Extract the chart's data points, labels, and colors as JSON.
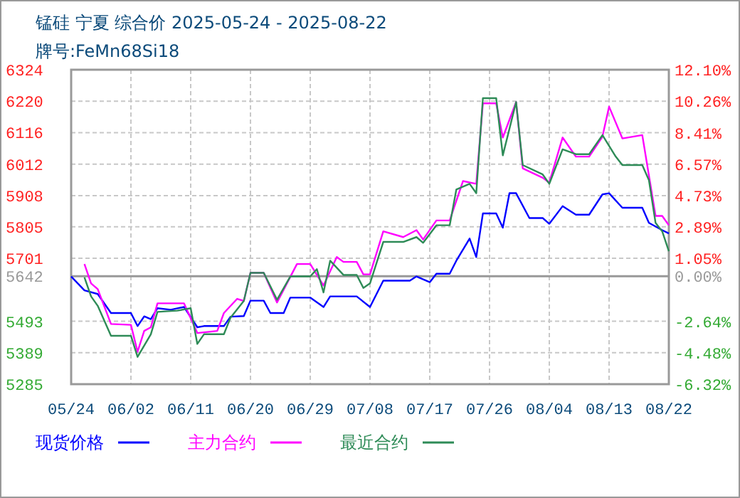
{
  "chart_data": {
    "type": "line",
    "title": "锰硅  宁夏  综合价  2025-05-24 - 2025-08-22",
    "subtitle": "牌号:FeMn68Si18",
    "xlim": [
      "2025-05-24",
      "2025-08-22"
    ],
    "xticks": [
      {
        "value": "2025-05-24",
        "label": "05/24"
      },
      {
        "value": "2025-06-02",
        "label": "06/02"
      },
      {
        "value": "2025-06-11",
        "label": "06/11"
      },
      {
        "value": "2025-06-20",
        "label": "06/20"
      },
      {
        "value": "2025-06-29",
        "label": "06/29"
      },
      {
        "value": "2025-07-08",
        "label": "07/08"
      },
      {
        "value": "2025-07-17",
        "label": "07/17"
      },
      {
        "value": "2025-07-26",
        "label": "07/26"
      },
      {
        "value": "2025-08-04",
        "label": "08/04"
      },
      {
        "value": "2025-08-13",
        "label": "08/13"
      },
      {
        "value": "2025-08-22",
        "label": "08/22"
      }
    ],
    "ylim": [
      5285,
      6324
    ],
    "yticks": [
      5285,
      5389,
      5493,
      5642,
      5701,
      5805,
      5908,
      6012,
      6116,
      6220,
      6324
    ],
    "y2lim": [
      -6.32,
      12.1
    ],
    "y2ticks": [
      {
        "value": -6.32,
        "label": "-6.32%"
      },
      {
        "value": -4.48,
        "label": "-4.48%"
      },
      {
        "value": -2.64,
        "label": "-2.64%"
      },
      {
        "value": 0,
        "label": "0.00%"
      },
      {
        "value": 1.05,
        "label": "1.05%"
      },
      {
        "value": 2.89,
        "label": "2.89%"
      },
      {
        "value": 4.73,
        "label": "4.73%"
      },
      {
        "value": 6.57,
        "label": "6.57%"
      },
      {
        "value": 8.41,
        "label": "8.41%"
      },
      {
        "value": 10.26,
        "label": "10.26%"
      },
      {
        "value": 12.1,
        "label": "12.10%"
      }
    ],
    "ref_lines": [
      {
        "axis": "y",
        "value": 5642,
        "color": "#999999"
      }
    ],
    "grid": true,
    "legend": "bottom",
    "marker": "none",
    "line_style": "solid",
    "series": [
      {
        "name": "现货价格",
        "color": "#0000ff",
        "x": [
          "2025-05-24",
          "2025-05-26",
          "2025-05-28",
          "2025-05-30",
          "2025-06-02",
          "2025-06-03",
          "2025-06-04",
          "2025-06-05",
          "2025-06-06",
          "2025-06-08",
          "2025-06-10",
          "2025-06-12",
          "2025-06-13",
          "2025-06-16",
          "2025-06-17",
          "2025-06-19",
          "2025-06-20",
          "2025-06-22",
          "2025-06-23",
          "2025-06-25",
          "2025-06-26",
          "2025-06-29",
          "2025-07-01",
          "2025-07-02",
          "2025-07-06",
          "2025-07-08",
          "2025-07-10",
          "2025-07-14",
          "2025-07-15",
          "2025-07-17",
          "2025-07-18",
          "2025-07-20",
          "2025-07-21",
          "2025-07-23",
          "2025-07-24",
          "2025-07-25",
          "2025-07-27",
          "2025-07-28",
          "2025-07-29",
          "2025-07-30",
          "2025-08-01",
          "2025-08-03",
          "2025-08-04",
          "2025-08-06",
          "2025-08-08",
          "2025-08-10",
          "2025-08-12",
          "2025-08-13",
          "2025-08-15",
          "2025-08-18",
          "2025-08-19",
          "2025-08-21",
          "2025-08-22"
        ],
        "values": [
          5641,
          5595,
          5583,
          5520,
          5520,
          5477,
          5509,
          5500,
          5536,
          5531,
          5540,
          5473,
          5477,
          5477,
          5508,
          5510,
          5561,
          5561,
          5520,
          5520,
          5571,
          5571,
          5540,
          5575,
          5575,
          5540,
          5627,
          5627,
          5641,
          5622,
          5650,
          5650,
          5693,
          5766,
          5705,
          5849,
          5849,
          5802,
          5916,
          5916,
          5834,
          5834,
          5815,
          5873,
          5845,
          5845,
          5912,
          5916,
          5868,
          5868,
          5818,
          5794,
          5783
        ]
      },
      {
        "name": "主力合约",
        "color": "#ff00ff",
        "x": [
          "2025-05-26",
          "2025-05-27",
          "2025-05-28",
          "2025-05-30",
          "2025-06-02",
          "2025-06-03",
          "2025-06-04",
          "2025-06-05",
          "2025-06-06",
          "2025-06-10",
          "2025-06-12",
          "2025-06-15",
          "2025-06-16",
          "2025-06-18",
          "2025-06-19",
          "2025-06-20",
          "2025-06-22",
          "2025-06-24",
          "2025-06-27",
          "2025-06-29",
          "2025-07-01",
          "2025-07-03",
          "2025-07-04",
          "2025-07-06",
          "2025-07-07",
          "2025-07-08",
          "2025-07-10",
          "2025-07-13",
          "2025-07-15",
          "2025-07-16",
          "2025-07-18",
          "2025-07-20",
          "2025-07-22",
          "2025-07-24",
          "2025-07-25",
          "2025-07-27",
          "2025-07-28",
          "2025-07-30",
          "2025-07-31",
          "2025-08-03",
          "2025-08-04",
          "2025-08-06",
          "2025-08-08",
          "2025-08-10",
          "2025-08-12",
          "2025-08-13",
          "2025-08-15",
          "2025-08-18",
          "2025-08-20",
          "2025-08-21",
          "2025-08-22"
        ],
        "values": [
          5682,
          5618,
          5599,
          5484,
          5481,
          5392,
          5461,
          5473,
          5552,
          5552,
          5454,
          5461,
          5520,
          5567,
          5560,
          5653,
          5653,
          5555,
          5682,
          5682,
          5611,
          5705,
          5689,
          5689,
          5648,
          5648,
          5790,
          5771,
          5794,
          5763,
          5826,
          5826,
          5956,
          5947,
          6213,
          6213,
          6100,
          6217,
          5998,
          5967,
          5951,
          6100,
          6037,
          6037,
          6103,
          6202,
          6097,
          6108,
          5841,
          5841,
          5810
        ]
      },
      {
        "name": "最近合约",
        "color": "#2e8b57",
        "x": [
          "2025-05-26",
          "2025-05-27",
          "2025-05-28",
          "2025-05-30",
          "2025-06-02",
          "2025-06-03",
          "2025-06-05",
          "2025-06-06",
          "2025-06-09",
          "2025-06-11",
          "2025-06-12",
          "2025-06-13",
          "2025-06-16",
          "2025-06-17",
          "2025-06-19",
          "2025-06-20",
          "2025-06-22",
          "2025-06-24",
          "2025-06-26",
          "2025-06-29",
          "2025-06-30",
          "2025-07-01",
          "2025-07-02",
          "2025-07-04",
          "2025-07-06",
          "2025-07-07",
          "2025-07-08",
          "2025-07-10",
          "2025-07-13",
          "2025-07-15",
          "2025-07-16",
          "2025-07-18",
          "2025-07-20",
          "2025-07-21",
          "2025-07-23",
          "2025-07-24",
          "2025-07-25",
          "2025-07-27",
          "2025-07-28",
          "2025-07-30",
          "2025-07-31",
          "2025-08-03",
          "2025-08-04",
          "2025-08-06",
          "2025-08-08",
          "2025-08-10",
          "2025-08-12",
          "2025-08-14",
          "2025-08-15",
          "2025-08-18",
          "2025-08-19",
          "2025-08-20",
          "2025-08-21",
          "2025-08-22"
        ],
        "values": [
          5638,
          5575,
          5544,
          5445,
          5445,
          5375,
          5450,
          5524,
          5528,
          5536,
          5418,
          5450,
          5450,
          5505,
          5560,
          5653,
          5653,
          5564,
          5641,
          5641,
          5665,
          5588,
          5693,
          5646,
          5646,
          5603,
          5618,
          5755,
          5755,
          5771,
          5752,
          5810,
          5810,
          5928,
          5947,
          5916,
          6230,
          6230,
          6041,
          6217,
          6009,
          5978,
          5947,
          6061,
          6045,
          6045,
          6108,
          6037,
          6009,
          6009,
          5959,
          5818,
          5790,
          5724
        ]
      }
    ]
  }
}
